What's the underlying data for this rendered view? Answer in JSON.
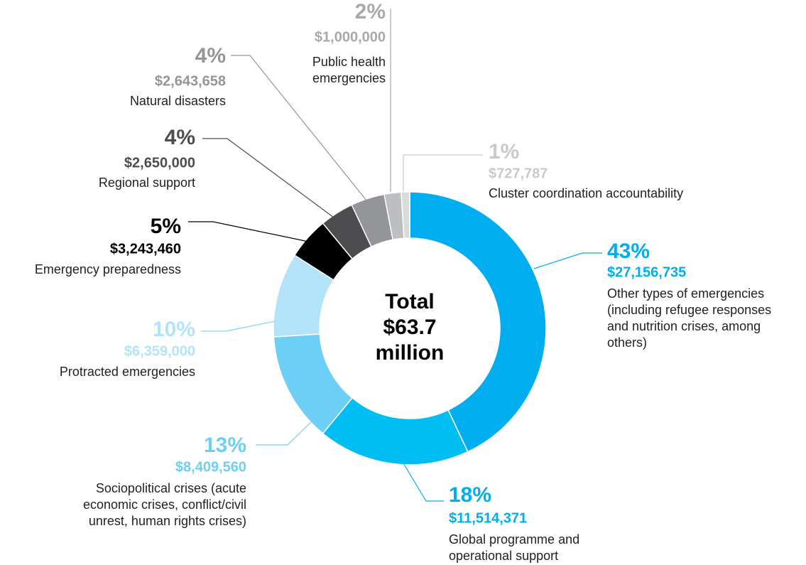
{
  "chart_data": {
    "type": "pie",
    "center_label": [
      "Total",
      "$63.7",
      "million"
    ],
    "categories": [
      [
        "Other types of emergencies",
        "(including refugee responses",
        "and nutrition crises, among",
        "others)"
      ],
      [
        "Global programme and",
        "operational support"
      ],
      [
        "Sociopolitical crises (acute",
        "economic crises, conflict/civil",
        "unrest, human rights crises)"
      ],
      [
        "Protracted emergencies"
      ],
      [
        "Emergency preparedness"
      ],
      [
        "Regional support"
      ],
      [
        "Natural disasters"
      ],
      [
        "Public health",
        "emergencies"
      ],
      [
        "Cluster coordination accountability"
      ]
    ],
    "values": [
      43,
      18,
      13,
      10,
      5,
      4,
      4,
      2,
      1
    ],
    "value_labels": [
      "43%",
      "18%",
      "13%",
      "10%",
      "5%",
      "4%",
      "4%",
      "2%",
      "1%"
    ],
    "amounts": [
      "$27,156,735",
      "$11,514,371",
      "$8,409,560",
      "$6,359,000",
      "$3,243,460",
      "$2,650,000",
      "$2,643,658",
      "$1,000,000",
      "$727,787"
    ],
    "colors": [
      "#00aeef",
      "#00bdf2",
      "#6dcff6",
      "#b3e3f9",
      "#000000",
      "#4d4d4f",
      "#939598",
      "#bcbec0",
      "#d9dadb"
    ],
    "label_colors": [
      "#00aeef",
      "#00aeef",
      "#6dcff6",
      "#b3e3f9",
      "#000000",
      "#4d4d4f",
      "#939598",
      "#a7a9ac",
      "#c8c9cb"
    ]
  }
}
